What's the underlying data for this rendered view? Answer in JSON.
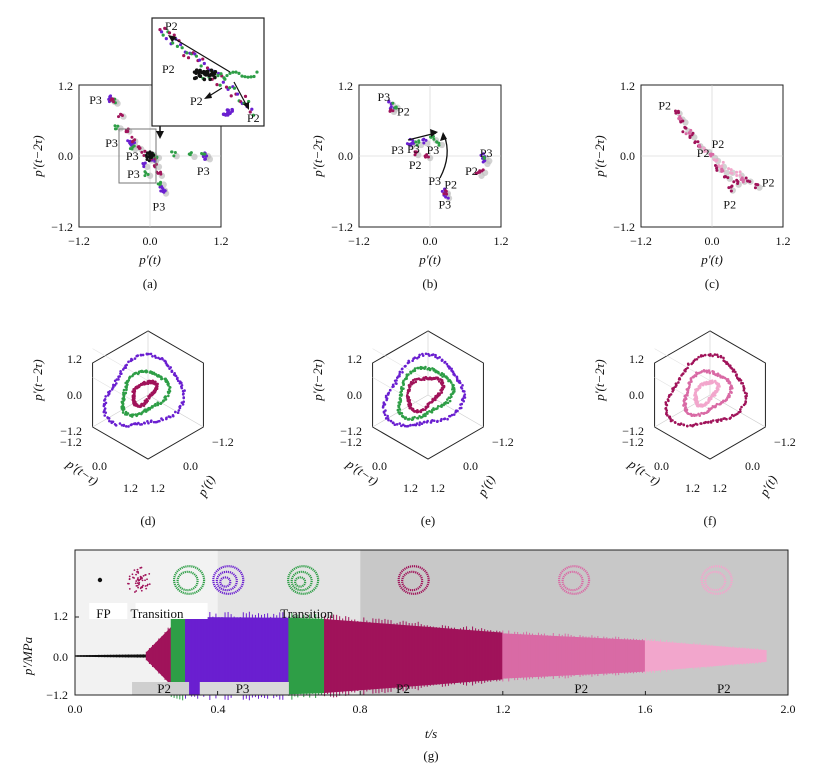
{
  "chart_data": [
    {
      "id": "a",
      "type": "scatter",
      "caption": "(a)",
      "xlabel": "p'(t)",
      "ylabel": "p'(t−2τ)",
      "xlim": [
        -1.2,
        1.2
      ],
      "ylim": [
        -1.2,
        1.2
      ],
      "xticks": [
        "−1.2",
        "0.0",
        "1.2"
      ],
      "yticks": [
        "−1.2",
        "0.0",
        "1.2"
      ],
      "annotations": [
        {
          "text": "P3",
          "x": -0.92,
          "y": 0.95
        },
        {
          "text": "P3",
          "x": -0.65,
          "y": 0.22
        },
        {
          "text": "P3",
          "x": -0.3,
          "y": 0.0
        },
        {
          "text": "P3",
          "x": -0.28,
          "y": -0.3
        },
        {
          "text": "P3",
          "x": 0.9,
          "y": -0.25
        },
        {
          "text": "P3",
          "x": 0.15,
          "y": -0.85
        }
      ],
      "inset_labels": [
        "P2",
        "P2",
        "P2",
        "P2"
      ],
      "series": [
        {
          "color": "#6a1fd0",
          "points": [
            [
              -0.65,
              0.95
            ],
            [
              -0.68,
              0.98
            ],
            [
              -0.35,
              0.22
            ],
            [
              -0.3,
              0.2
            ],
            [
              0.93,
              0.03
            ],
            [
              0.96,
              -0.02
            ],
            [
              0.2,
              -0.55
            ],
            [
              0.22,
              -0.6
            ],
            [
              -0.1,
              -0.15
            ],
            [
              0.05,
              -0.05
            ]
          ]
        },
        {
          "color": "#2e9e46",
          "points": [
            [
              -0.6,
              0.92
            ],
            [
              -0.55,
              0.5
            ],
            [
              -0.3,
              0.15
            ],
            [
              0.1,
              0.0
            ],
            [
              0.4,
              0.03
            ],
            [
              0.7,
              0.02
            ],
            [
              0.9,
              0.0
            ],
            [
              0.18,
              -0.45
            ],
            [
              -0.05,
              -0.3
            ]
          ]
        },
        {
          "color": "#a0135a",
          "points": [
            [
              -0.62,
              0.95
            ],
            [
              -0.5,
              0.7
            ],
            [
              -0.4,
              0.45
            ],
            [
              -0.3,
              0.28
            ],
            [
              -0.2,
              0.15
            ],
            [
              -0.1,
              0.05
            ],
            [
              0.05,
              -0.05
            ],
            [
              0.1,
              -0.15
            ],
            [
              0.15,
              -0.3
            ]
          ]
        },
        {
          "color": "#111111",
          "points": [
            [
              0.0,
              0.0
            ],
            [
              0.03,
              -0.02
            ],
            [
              -0.03,
              0.03
            ],
            [
              0.02,
              0.05
            ],
            [
              -0.02,
              -0.04
            ]
          ]
        }
      ]
    },
    {
      "id": "b",
      "type": "scatter",
      "caption": "(b)",
      "xlabel": "p'(t)",
      "ylabel": "p'(t−2τ)",
      "xlim": [
        -1.2,
        1.2
      ],
      "ylim": [
        -1.2,
        1.2
      ],
      "xticks": [
        "−1.2",
        "0.0",
        "1.2"
      ],
      "yticks": [
        "−1.2",
        "0.0",
        "1.2"
      ],
      "annotations": [
        {
          "text": "P3",
          "x": -0.78,
          "y": 1.0
        },
        {
          "text": "P2",
          "x": -0.45,
          "y": 0.75
        },
        {
          "text": "P3",
          "x": -0.55,
          "y": 0.1
        },
        {
          "text": "P3",
          "x": -0.28,
          "y": 0.12
        },
        {
          "text": "P3",
          "x": 0.05,
          "y": 0.1
        },
        {
          "text": "P2",
          "x": -0.25,
          "y": -0.15
        },
        {
          "text": "P3",
          "x": 0.95,
          "y": 0.05
        },
        {
          "text": "P2",
          "x": 0.7,
          "y": -0.25
        },
        {
          "text": "P3",
          "x": 0.08,
          "y": -0.42
        },
        {
          "text": "P2",
          "x": 0.35,
          "y": -0.48
        },
        {
          "text": "P3",
          "x": 0.25,
          "y": -0.82
        }
      ],
      "series": [
        {
          "color": "#6a1fd0",
          "points": [
            [
              -0.68,
              0.9
            ],
            [
              -0.64,
              0.82
            ],
            [
              -0.35,
              0.2
            ],
            [
              -0.3,
              0.25
            ],
            [
              -0.1,
              0.25
            ],
            [
              0.9,
              0.0
            ],
            [
              0.92,
              -0.1
            ],
            [
              0.25,
              -0.6
            ],
            [
              0.27,
              -0.68
            ]
          ]
        },
        {
          "color": "#2e9e46",
          "points": [
            [
              -0.6,
              0.85
            ],
            [
              -0.2,
              0.22
            ],
            [
              0.05,
              0.3
            ],
            [
              0.15,
              0.22
            ],
            [
              0.95,
              -0.05
            ]
          ]
        },
        {
          "color": "#a0135a",
          "points": [
            [
              -0.66,
              0.78
            ],
            [
              -0.25,
              0.05
            ],
            [
              -0.05,
              0.0
            ],
            [
              0.82,
              -0.3
            ],
            [
              0.88,
              -0.25
            ],
            [
              0.24,
              -0.62
            ]
          ]
        }
      ]
    },
    {
      "id": "c",
      "type": "scatter",
      "caption": "(c)",
      "xlabel": "p'(t)",
      "ylabel": "p'(t−2τ)",
      "xlim": [
        -1.2,
        1.2
      ],
      "ylim": [
        -1.2,
        1.2
      ],
      "xticks": [
        "−1.2",
        "0.0",
        "1.2"
      ],
      "yticks": [
        "−1.2",
        "0.0",
        "1.2"
      ],
      "annotations": [
        {
          "text": "P2",
          "x": -0.8,
          "y": 0.85
        },
        {
          "text": "P2",
          "x": 0.1,
          "y": 0.2
        },
        {
          "text": "P2",
          "x": -0.15,
          "y": 0.05
        },
        {
          "text": "P2",
          "x": 0.95,
          "y": -0.45
        },
        {
          "text": "P2",
          "x": 0.3,
          "y": -0.82
        }
      ],
      "series": [
        {
          "color": "#a0135a",
          "points": [
            [
              -0.6,
              0.75
            ],
            [
              -0.5,
              0.6
            ],
            [
              -0.45,
              0.45
            ],
            [
              -0.35,
              0.35
            ],
            [
              -0.25,
              0.2
            ],
            [
              0.1,
              -0.2
            ],
            [
              0.25,
              -0.35
            ],
            [
              0.4,
              -0.45
            ],
            [
              0.6,
              -0.4
            ],
            [
              0.75,
              -0.5
            ],
            [
              0.3,
              -0.55
            ]
          ]
        },
        {
          "color": "#d96aa5",
          "points": [
            [
              -0.55,
              0.65
            ],
            [
              -0.4,
              0.4
            ],
            [
              -0.2,
              0.15
            ],
            [
              0.0,
              0.0
            ],
            [
              0.2,
              -0.25
            ],
            [
              0.5,
              -0.4
            ]
          ]
        },
        {
          "color": "#f2a6cc",
          "points": [
            [
              -0.1,
              0.1
            ],
            [
              0.05,
              -0.05
            ],
            [
              0.15,
              -0.15
            ],
            [
              0.3,
              -0.25
            ],
            [
              0.45,
              -0.3
            ]
          ]
        }
      ]
    },
    {
      "id": "d",
      "type": "3d-scatter",
      "caption": "(d)",
      "axis_labels": [
        "p'(t−2τ)",
        "p'(t−τ)",
        "p'(t)"
      ],
      "zticks": [
        "1.2",
        "0.0",
        "−1.2"
      ],
      "xticks": [
        "−1.2",
        "0.0",
        "1.2"
      ],
      "yticks": [
        "−1.2",
        "0.0",
        "1.2"
      ],
      "series": [
        {
          "color": "#6a1fd0",
          "radius": 1.0
        },
        {
          "color": "#2e9e46",
          "radius": 0.6
        },
        {
          "color": "#a0135a",
          "radius": 0.3
        }
      ]
    },
    {
      "id": "e",
      "type": "3d-scatter",
      "caption": "(e)",
      "axis_labels": [
        "p'(t−2τ)",
        "p'(t−τ)",
        "p'(t)"
      ],
      "zticks": [
        "1.2",
        "0.0",
        "−1.2"
      ],
      "xticks": [
        "−1.2",
        "0.0",
        "1.2"
      ],
      "yticks": [
        "−1.2",
        "0.0",
        "1.2"
      ],
      "series": [
        {
          "color": "#6a1fd0",
          "radius": 1.0
        },
        {
          "color": "#2e9e46",
          "radius": 0.7
        },
        {
          "color": "#a0135a",
          "radius": 0.45
        }
      ]
    },
    {
      "id": "f",
      "type": "3d-scatter",
      "caption": "(f)",
      "axis_labels": [
        "p'(t−2τ)",
        "p'(t−τ)",
        "p'(t)"
      ],
      "zticks": [
        "1.2",
        "0.0",
        "−1.2"
      ],
      "xticks": [
        "−1.2",
        "0.0",
        "1.2"
      ],
      "yticks": [
        "−1.2",
        "0.0",
        "1.2"
      ],
      "series": [
        {
          "color": "#a0135a",
          "radius": 1.0
        },
        {
          "color": "#d96aa5",
          "radius": 0.6
        },
        {
          "color": "#f2a6cc",
          "radius": 0.3
        }
      ]
    },
    {
      "id": "g",
      "type": "area",
      "caption": "(g)",
      "xlabel": "t/s",
      "ylabel": "p'/MPa",
      "xlim": [
        0.0,
        2.0
      ],
      "ylim": [
        -1.2,
        1.2
      ],
      "xticks": [
        "0.0",
        "0.4",
        "0.8",
        "1.2",
        "1.6",
        "2.0"
      ],
      "yticks": [
        "−1.2",
        "0.0",
        "1.2"
      ],
      "background_bands": [
        {
          "x0": 0.0,
          "x1": 0.4,
          "color": "#f2f2f2"
        },
        {
          "x0": 0.4,
          "x1": 0.8,
          "color": "#e4e4e4"
        },
        {
          "x0": 0.8,
          "x1": 2.0,
          "color": "#c8c8c8"
        }
      ],
      "region_labels": [
        {
          "text": "FP",
          "x": 0.08,
          "y": 1.35
        },
        {
          "text": "Transition",
          "x": 0.23,
          "y": 1.35
        },
        {
          "text": "Transition",
          "x": 0.65,
          "y": 1.35
        },
        {
          "text": "P2",
          "x": 0.25,
          "y": -1.05
        },
        {
          "text": "P3",
          "x": 0.47,
          "y": -1.05
        },
        {
          "text": "P2",
          "x": 0.92,
          "y": -1.05
        },
        {
          "text": "P2",
          "x": 1.42,
          "y": -1.05
        },
        {
          "text": "P2",
          "x": 1.82,
          "y": -1.05
        }
      ],
      "segments": [
        {
          "t0": 0.0,
          "t1": 0.2,
          "amp0": 0.02,
          "amp1": 0.04,
          "color": "#111111"
        },
        {
          "t0": 0.2,
          "t1": 0.27,
          "amp0": 0.1,
          "amp1": 0.75,
          "color": "#a0135a"
        },
        {
          "t0": 0.27,
          "t1": 0.31,
          "amp0": 0.95,
          "amp1": 1.0,
          "color": "#2e9e46"
        },
        {
          "t0": 0.31,
          "t1": 0.6,
          "amp0": 1.0,
          "amp1": 0.98,
          "color": "#6a1fd0"
        },
        {
          "t0": 0.6,
          "t1": 0.7,
          "amp0": 0.98,
          "amp1": 0.95,
          "color": "#2e9e46"
        },
        {
          "t0": 0.7,
          "t1": 1.2,
          "amp0": 0.95,
          "amp1": 0.6,
          "color": "#a0135a"
        },
        {
          "t0": 1.2,
          "t1": 1.6,
          "amp0": 0.58,
          "amp1": 0.4,
          "color": "#d96aa5"
        },
        {
          "t0": 1.6,
          "t1": 1.94,
          "amp0": 0.4,
          "amp1": 0.15,
          "color": "#f2a6cc"
        }
      ],
      "inset_icons": [
        {
          "type": "dot",
          "t": 0.07,
          "color": "#111111"
        },
        {
          "type": "cloud",
          "t": 0.18,
          "color": "#a0135a"
        },
        {
          "type": "ring",
          "t": 0.32,
          "color": "#2e9e46",
          "rings": 2
        },
        {
          "type": "ring",
          "t": 0.43,
          "color": "#6a1fd0",
          "rings": 3
        },
        {
          "type": "ring",
          "t": 0.64,
          "color": "#2e9e46",
          "rings": 3
        },
        {
          "type": "ring",
          "t": 0.95,
          "color": "#a0135a",
          "rings": 2
        },
        {
          "type": "ring",
          "t": 1.4,
          "color": "#d96aa5",
          "rings": 2
        },
        {
          "type": "ring",
          "t": 1.8,
          "color": "#f2a6cc",
          "rings": 2
        }
      ]
    }
  ]
}
